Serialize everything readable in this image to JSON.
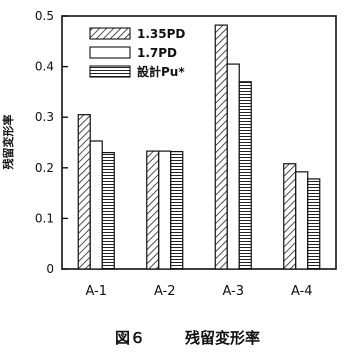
{
  "chart_data": {
    "type": "bar",
    "title": "",
    "caption_number": "図６",
    "caption_text": "残留変形率",
    "ylabel": "残留変形率",
    "xlabel": "",
    "ylim": [
      0,
      0.5
    ],
    "yticks": [
      "0",
      "0.1",
      "0.2",
      "0.3",
      "0.4",
      "0.5"
    ],
    "categories": [
      "A-1",
      "A-2",
      "A-3",
      "A-4"
    ],
    "series": [
      {
        "name": "1.35PD",
        "pattern": "hatch-diagonal",
        "values": [
          0.305,
          0.233,
          0.482,
          0.208
        ]
      },
      {
        "name": "1.7PD",
        "pattern": "plain",
        "values": [
          0.253,
          0.233,
          0.405,
          0.192
        ]
      },
      {
        "name": "設計Pu*",
        "pattern": "hatch-horizontal",
        "values": [
          0.23,
          0.232,
          0.37,
          0.178
        ]
      }
    ],
    "legend_position": "top-left",
    "grid": false
  }
}
